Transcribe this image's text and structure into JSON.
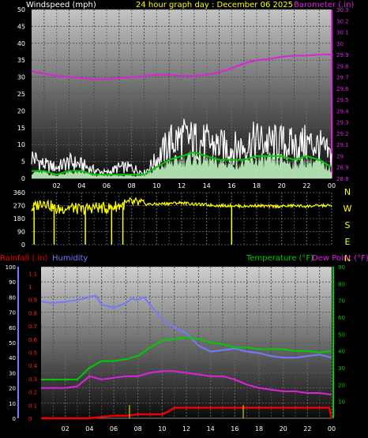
{
  "header": {
    "wind_label": "Windspeed (mph)",
    "title": "24 hour graph day : December 06 2025",
    "baro_label": "Barometer (.in)"
  },
  "colors": {
    "wind_gust": "#ffffff",
    "wind_avg": "#c8ffc8",
    "wind_line": "#00cc00",
    "barometer": "#dd22dd",
    "direction": "#ffff00",
    "rainfall": "#ee0000",
    "humidity": "#7777ff",
    "temperature": "#00cc00",
    "dew_point": "#dd22dd",
    "rain_ticks": "#ff2222",
    "hum_axis": "#7777ff",
    "right_axis": "#00cc00"
  },
  "chart_data": [
    {
      "type": "line",
      "x_ticks": [
        "02",
        "04",
        "06",
        "08",
        "10",
        "12",
        "14",
        "16",
        "18",
        "20",
        "22",
        "00"
      ],
      "xlim": [
        0,
        24
      ],
      "left_axis": {
        "label": "Windspeed (mph)",
        "ylim": [
          0,
          50
        ],
        "ticks": [
          0,
          5,
          10,
          15,
          20,
          25,
          30,
          35,
          40,
          45,
          50
        ]
      },
      "right_axis": {
        "label": "Barometer (.in)",
        "ylim": [
          28.8,
          30.3
        ],
        "ticks": [
          "28.8",
          "28.9",
          "29",
          "29.1",
          "29.2",
          "29.3",
          "29.4",
          "29.5",
          "29.6",
          "29.7",
          "29.8",
          "29.9",
          "30",
          "30.1",
          "30.2",
          "30.3"
        ]
      },
      "series": [
        {
          "name": "Barometer",
          "axis": "right",
          "x": [
            0,
            1,
            2,
            3,
            4,
            5,
            6,
            7,
            8,
            9,
            10,
            11,
            12,
            13,
            14,
            15,
            16,
            17,
            18,
            19,
            20,
            21,
            22,
            23,
            24
          ],
          "values": [
            29.75,
            29.73,
            29.71,
            29.7,
            29.69,
            29.68,
            29.68,
            29.69,
            29.7,
            29.71,
            29.72,
            29.72,
            29.71,
            29.71,
            29.72,
            29.74,
            29.78,
            29.82,
            29.85,
            29.86,
            29.88,
            29.89,
            29.89,
            29.9,
            29.9
          ]
        },
        {
          "name": "Gust",
          "axis": "left",
          "x": [
            0,
            1,
            2,
            3,
            4,
            5,
            6,
            7,
            8,
            9,
            10,
            11,
            12,
            13,
            14,
            15,
            16,
            17,
            18,
            19,
            20,
            21,
            22,
            23,
            24
          ],
          "values": [
            8,
            5,
            4,
            6,
            5,
            3,
            2,
            4,
            4,
            2,
            7,
            13,
            15,
            14,
            13,
            12,
            11,
            12,
            14,
            13,
            13,
            12,
            13,
            12,
            8
          ]
        },
        {
          "name": "Wind average",
          "axis": "left",
          "x": [
            0,
            1,
            2,
            3,
            4,
            5,
            6,
            7,
            8,
            9,
            10,
            11,
            12,
            13,
            14,
            15,
            16,
            17,
            18,
            19,
            20,
            21,
            22,
            23,
            24
          ],
          "values": [
            2,
            2,
            1,
            2,
            2,
            1,
            1,
            1,
            1,
            1,
            3,
            5,
            6,
            7,
            6,
            5,
            5,
            5,
            6,
            6,
            6,
            5,
            6,
            5,
            3
          ]
        }
      ]
    },
    {
      "type": "line",
      "x_ticks": [
        "02",
        "04",
        "06",
        "08",
        "10",
        "12",
        "14",
        "16",
        "18",
        "20",
        "22",
        "00"
      ],
      "xlim": [
        0,
        24
      ],
      "left_axis": {
        "ylim": [
          0,
          360
        ],
        "ticks": [
          0,
          90,
          180,
          270,
          360
        ]
      },
      "right_axis": {
        "ticks": [
          "N",
          "W",
          "S",
          "E",
          "N"
        ]
      },
      "series": [
        {
          "name": "Wind direction",
          "x": [
            0,
            1,
            2,
            3,
            4,
            5,
            6,
            7,
            8,
            9,
            10,
            11,
            12,
            13,
            14,
            15,
            16,
            17,
            18,
            19,
            20,
            21,
            22,
            23,
            24
          ],
          "values": [
            250,
            300,
            240,
            260,
            240,
            260,
            250,
            270,
            290,
            280,
            280,
            285,
            290,
            280,
            275,
            270,
            270,
            265,
            270,
            265,
            265,
            270,
            265,
            270,
            270
          ]
        }
      ]
    },
    {
      "type": "line",
      "x_ticks": [
        "02",
        "04",
        "06",
        "08",
        "10",
        "12",
        "14",
        "16",
        "18",
        "20",
        "22",
        "00"
      ],
      "xlim": [
        0,
        24
      ],
      "rain_axis": {
        "label": "Rainfall (.in)",
        "ylim": [
          0,
          1.15
        ],
        "ticks": [
          "0",
          "0.1",
          "0.2",
          "0.3",
          "0.4",
          "0.5",
          "0.6",
          "0.7",
          "0.8",
          "0.9",
          "1",
          "1.1"
        ]
      },
      "hum_axis": {
        "label": "Humidity",
        "ylim": [
          0,
          100
        ],
        "ticks": [
          0,
          10,
          20,
          30,
          40,
          50,
          60,
          70,
          80,
          90,
          100
        ]
      },
      "right_axis": {
        "label": "Temperature (°F)",
        "ylim": [
          0,
          90
        ],
        "ticks": [
          10,
          20,
          30,
          40,
          50,
          60,
          70,
          80,
          90
        ]
      },
      "dew_label": "Dew Point (°F)",
      "series": [
        {
          "name": "Humidity",
          "axis": "hum",
          "x": [
            0,
            1,
            2,
            3,
            4,
            4.5,
            5,
            6,
            7,
            7.5,
            8,
            8.5,
            9,
            10,
            11,
            12,
            13,
            14,
            15,
            16,
            17,
            18,
            19,
            20,
            21,
            22,
            23,
            24
          ],
          "values": [
            77,
            76,
            77,
            78,
            80,
            81,
            75,
            73,
            76,
            79,
            78,
            80,
            75,
            65,
            60,
            56,
            48,
            44,
            45,
            46,
            44,
            43,
            41,
            40,
            40,
            41,
            42,
            40
          ]
        },
        {
          "name": "Temperature",
          "axis": "right",
          "x": [
            0,
            1,
            2,
            3,
            4,
            5,
            6,
            7,
            8,
            9,
            10,
            11,
            12,
            13,
            14,
            15,
            16,
            17,
            18,
            19,
            20,
            21,
            22,
            23,
            24
          ],
          "values": [
            23,
            23,
            23,
            23,
            30,
            34,
            34,
            35,
            37,
            42,
            46,
            47,
            48,
            47,
            45,
            44,
            42,
            42,
            41,
            41,
            41,
            40,
            40,
            39,
            40
          ]
        },
        {
          "name": "Dew Point",
          "axis": "right",
          "x": [
            0,
            1,
            2,
            3,
            4,
            5,
            6,
            7,
            8,
            9,
            10,
            11,
            12,
            13,
            14,
            15,
            16,
            17,
            18,
            19,
            20,
            21,
            22,
            23,
            24
          ],
          "values": [
            18,
            18,
            18,
            19,
            25,
            23,
            24,
            25,
            25,
            27,
            28,
            28,
            27,
            26,
            25,
            25,
            23,
            20,
            18,
            17,
            16,
            16,
            15,
            15,
            14
          ]
        },
        {
          "name": "Rainfall",
          "axis": "rain",
          "x": [
            0,
            4,
            5,
            6,
            7,
            8,
            9,
            10,
            10.5,
            11,
            12,
            13,
            14,
            15,
            16,
            17,
            18,
            19,
            20,
            21,
            22,
            23,
            23.8,
            24
          ],
          "values": [
            0,
            0,
            0.01,
            0.02,
            0.02,
            0.03,
            0.03,
            0.03,
            0.05,
            0.08,
            0.08,
            0.08,
            0.08,
            0.08,
            0.08,
            0.08,
            0.08,
            0.08,
            0.08,
            0.08,
            0.08,
            0.08,
            0.08,
            0.0
          ]
        }
      ]
    }
  ]
}
